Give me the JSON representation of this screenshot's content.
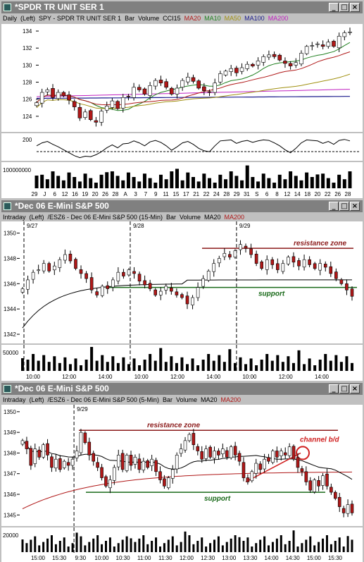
{
  "colors": {
    "up": "#ffffff",
    "down": "#b01818",
    "ma20": "#b01818",
    "ma10": "#208020",
    "ma50": "#a09010",
    "ma100": "#1a1a8c",
    "ma200": "#c020c0",
    "support": "#1a6a1a",
    "resistance": "#8b1a1a"
  },
  "panels": [
    {
      "title": "*SPDR TR UNIT SER 1",
      "header": [
        {
          "text": "Daily",
          "color": "#000"
        },
        {
          "text": "(Left)",
          "color": "#000"
        },
        {
          "text": "SPY - SPDR TR UNIT SER 1",
          "color": "#000"
        },
        {
          "text": "Bar",
          "color": "#000"
        },
        {
          "text": "Volume",
          "color": "#000"
        },
        {
          "text": "CCI15",
          "color": "#000"
        },
        {
          "text": "MA20",
          "color": "#b01818"
        },
        {
          "text": "MA10",
          "color": "#208020"
        },
        {
          "text": "MA50",
          "color": "#a09010"
        },
        {
          "text": "MA100",
          "color": "#1a1a8c"
        },
        {
          "text": "MA200",
          "color": "#c020c0"
        }
      ],
      "y_ticks": [
        "134",
        "132",
        "130",
        "128",
        "126",
        "124"
      ],
      "cci_tick": "200",
      "vol_tick": "100000000",
      "x_ticks": [
        "29",
        "J",
        "6",
        "12",
        "16",
        "19",
        "20",
        "26",
        "28",
        "A",
        "3",
        "7",
        "9",
        "11",
        "15",
        "17",
        "21",
        "22",
        "24",
        "28",
        "29",
        "31",
        "S",
        "6",
        "8",
        "12",
        "14",
        "18",
        "20",
        "22",
        "26",
        "28"
      ]
    },
    {
      "title": "*Dec 06  E-Mini S&P 500",
      "header": [
        {
          "text": "Intraday",
          "color": "#000"
        },
        {
          "text": "(Left)",
          "color": "#000"
        },
        {
          "text": "/ESZ6 - Dec 06  E-Mini S&P 500 (15-Min)",
          "color": "#000"
        },
        {
          "text": "Bar",
          "color": "#000"
        },
        {
          "text": "Volume",
          "color": "#000"
        },
        {
          "text": "MA20",
          "color": "#000"
        },
        {
          "text": "MA200",
          "color": "#b01818"
        }
      ],
      "date_markers": [
        "9/27",
        "9/28",
        "9/29"
      ],
      "y_ticks": [
        "1350",
        "1348",
        "1346",
        "1344",
        "1342"
      ],
      "vol_tick": "50000",
      "x_ticks": [
        "10:00",
        "12:00",
        "14:00",
        "10:00",
        "12:00",
        "14:00",
        "10:00",
        "12:00",
        "14:00"
      ],
      "annotations": {
        "resistance": "resistance zone",
        "support": "support"
      }
    },
    {
      "title": "*Dec 06  E-Mini S&P 500",
      "header": [
        {
          "text": "Intraday",
          "color": "#000"
        },
        {
          "text": "(Left)",
          "color": "#000"
        },
        {
          "text": "/ESZ6 - Dec 06  E-Mini S&P 500 (5-Min)",
          "color": "#000"
        },
        {
          "text": "Bar",
          "color": "#000"
        },
        {
          "text": "Volume",
          "color": "#000"
        },
        {
          "text": "MA20",
          "color": "#000"
        },
        {
          "text": "MA200",
          "color": "#b01818"
        }
      ],
      "date_markers": [
        "9/29"
      ],
      "y_ticks": [
        "1350",
        "1349",
        "1348",
        "1347",
        "1346",
        "1345"
      ],
      "vol_tick": "20000",
      "x_ticks": [
        "15:00",
        "15:30",
        "9:30",
        "10:00",
        "10:30",
        "11:00",
        "11:30",
        "12:00",
        "12:30",
        "13:00",
        "13:30",
        "14:00",
        "14:30",
        "15:00",
        "15:30"
      ],
      "annotations": {
        "resistance": "resistance zone",
        "support": "support",
        "channel": "channel b/d"
      }
    }
  ],
  "chart_data": [
    {
      "type": "candlestick",
      "title": "SPY - SPDR TR UNIT SER 1",
      "ylim": [
        122.5,
        134.5
      ],
      "close": [
        125.6,
        126.8,
        127.1,
        126.2,
        126.8,
        126.4,
        125.9,
        125.1,
        123.8,
        124.5,
        123.6,
        123.3,
        124.6,
        125.2,
        125.8,
        124.9,
        126.2,
        126.3,
        127.4,
        127.1,
        126.6,
        127.6,
        128.2,
        127.9,
        127.4,
        126.6,
        127.3,
        128.2,
        128.6,
        128.1,
        127.3,
        127.0,
        126.8,
        127.9,
        129.0,
        129.3,
        129.6,
        129.1,
        129.7,
        130.1,
        129.9,
        130.5,
        131.0,
        131.2,
        131.0,
        130.6,
        130.2,
        129.9,
        130.3,
        131.4,
        132.2,
        132.3,
        132.5,
        132.2,
        132.7,
        132.2,
        133.4,
        133.8,
        133.9
      ],
      "cci": [
        60,
        120,
        150,
        90,
        40,
        -20,
        -80,
        -140,
        -180,
        -150,
        -160,
        -120,
        -60,
        20,
        80,
        20,
        100,
        110,
        160,
        120,
        60,
        140,
        170,
        130,
        60,
        -30,
        40,
        120,
        150,
        90,
        10,
        -40,
        -60,
        60,
        160,
        170,
        180,
        110,
        150,
        170,
        130,
        160,
        180,
        170,
        120,
        60,
        -20,
        -80,
        10,
        120,
        180,
        170,
        160,
        110,
        150,
        90,
        170,
        190,
        160
      ]
    },
    {
      "type": "candlestick",
      "title": "/ESZ6 - Dec 06  E-Mini S&P 500 (15-Min)",
      "ylim": [
        1341.5,
        1350.7
      ],
      "annotations": {
        "resistance_zone": 1348.8,
        "support": 1345.7
      },
      "close": [
        1345.6,
        1346.3,
        1346.9,
        1347.1,
        1347.6,
        1347.0,
        1347.4,
        1347.9,
        1348.3,
        1347.8,
        1347.2,
        1346.8,
        1346.4,
        1345.5,
        1345.1,
        1345.8,
        1345.6,
        1346.3,
        1346.9,
        1346.6,
        1347.1,
        1346.8,
        1346.2,
        1345.9,
        1345.6,
        1345.1,
        1345.4,
        1345.8,
        1345.4,
        1345.1,
        1344.9,
        1344.4,
        1344.9,
        1345.7,
        1346.4,
        1347.0,
        1347.6,
        1348.0,
        1348.4,
        1348.1,
        1348.6,
        1349.1,
        1348.8,
        1348.3,
        1347.6,
        1347.2,
        1347.9,
        1347.5,
        1347.1,
        1347.6,
        1348.1,
        1347.7,
        1347.4,
        1347.9,
        1347.5,
        1347.2,
        1347.6,
        1347.3,
        1346.8,
        1346.4,
        1346.0,
        1345.5,
        1345.0
      ]
    },
    {
      "type": "candlestick",
      "title": "/ESZ6 - Dec 06  E-Mini S&P 500 (5-Min)",
      "ylim": [
        1344.6,
        1350.2
      ],
      "annotations": {
        "resistance_zone": 1349.1,
        "support": 1346.1,
        "channel_break": 1348.0
      },
      "close": [
        1348.6,
        1348.2,
        1347.4,
        1348.2,
        1347.8,
        1348.4,
        1347.9,
        1347.3,
        1347.7,
        1347.2,
        1347.6,
        1347.4,
        1347.7,
        1348.1,
        1349.0,
        1348.5,
        1347.9,
        1347.6,
        1347.3,
        1346.8,
        1346.4,
        1346.7,
        1347.3,
        1347.9,
        1347.2,
        1347.9,
        1347.4,
        1347.8,
        1347.2,
        1347.6,
        1347.3,
        1347.7,
        1347.1,
        1346.7,
        1346.4,
        1346.8,
        1347.2,
        1347.9,
        1348.2,
        1348.6,
        1348.9,
        1348.4,
        1348.1,
        1347.7,
        1348.2,
        1347.8,
        1348.1,
        1347.9,
        1348.2,
        1347.8,
        1348.3,
        1347.9,
        1347.6,
        1346.8,
        1346.6,
        1347.1,
        1347.5,
        1347.2,
        1347.7,
        1347.6,
        1348.1,
        1347.8,
        1348.1,
        1347.9,
        1348.3,
        1347.7,
        1347.3,
        1347.1,
        1346.6,
        1346.2,
        1346.7,
        1346.4,
        1346.9,
        1346.4,
        1346.1,
        1345.8,
        1345.4,
        1345.1,
        1345.5,
        1345.1
      ]
    }
  ]
}
